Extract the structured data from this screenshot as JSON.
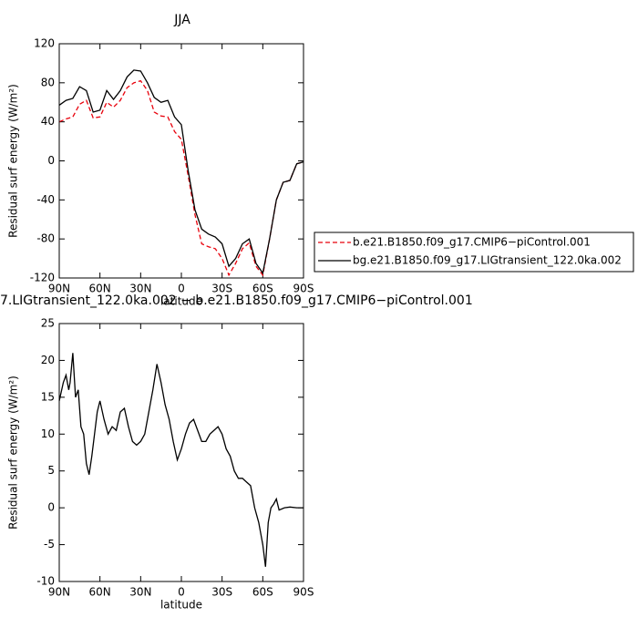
{
  "chart_data": [
    {
      "type": "line",
      "title": "JJA",
      "xlabel": "latitude",
      "ylabel": "Residual surf energy (W/m²)",
      "x": [
        90,
        85,
        80,
        75,
        70,
        65,
        60,
        55,
        50,
        45,
        40,
        35,
        30,
        25,
        20,
        15,
        10,
        5,
        0,
        -5,
        -10,
        -15,
        -20,
        -25,
        -30,
        -35,
        -40,
        -45,
        -50,
        -55,
        -60,
        -65,
        -70,
        -75,
        -80,
        -85,
        -90
      ],
      "series": [
        {
          "name": "b.e21.B1850.f09_g17.CMIP6−piControl.001",
          "color": "#e8000b",
          "dashed": true,
          "values": [
            40,
            43,
            45,
            58,
            62,
            44,
            45,
            60,
            55,
            62,
            75,
            80,
            82,
            72,
            50,
            46,
            45,
            30,
            22,
            -15,
            -55,
            -85,
            -88,
            -90,
            -100,
            -117,
            -105,
            -90,
            -84,
            -108,
            -117,
            -80,
            -40,
            -22,
            -20,
            -3,
            -1
          ]
        },
        {
          "name": "bg.e21.B1850.f09_g17.LIGtransient_122.0ka.002",
          "color": "#000000",
          "dashed": false,
          "values": [
            57,
            62,
            64,
            76,
            72,
            50,
            52,
            72,
            63,
            72,
            86,
            93,
            92,
            80,
            65,
            60,
            62,
            45,
            37,
            -10,
            -50,
            -70,
            -75,
            -78,
            -85,
            -108,
            -100,
            -85,
            -80,
            -105,
            -115,
            -80,
            -40,
            -22,
            -20,
            -3,
            -1
          ]
        }
      ],
      "xlim": [
        90,
        -90
      ],
      "xticks": [
        {
          "value": 90,
          "label": "90N"
        },
        {
          "value": 60,
          "label": "60N"
        },
        {
          "value": 30,
          "label": "30N"
        },
        0,
        {
          "value": -30,
          "label": "30S"
        },
        {
          "value": -60,
          "label": "60S"
        },
        {
          "value": -90,
          "label": "90S"
        }
      ],
      "ylim": [
        -120,
        120
      ],
      "yticks": [
        120,
        80,
        40,
        0,
        -40,
        -80,
        -120
      ],
      "legend": "right"
    },
    {
      "type": "line",
      "title": "7.LIGtransient_122.0ka.002 − b.e21.B1850.f09_g17.CMIP6−piControl.001",
      "xlabel": "latitude",
      "ylabel": "Residual surf energy (W/m²)",
      "x": [
        90,
        87,
        85,
        83,
        82,
        80,
        78,
        76,
        74,
        72,
        70,
        68,
        66,
        64,
        62,
        60,
        57,
        54,
        51,
        48,
        45,
        42,
        39,
        36,
        33,
        30,
        27,
        24,
        21,
        18,
        15,
        12,
        9,
        6,
        3,
        0,
        -3,
        -6,
        -9,
        -12,
        -15,
        -18,
        -21,
        -24,
        -27,
        -30,
        -33,
        -36,
        -39,
        -42,
        -45,
        -48,
        -51,
        -54,
        -57,
        -60,
        -62,
        -64,
        -66,
        -68,
        -70,
        -72,
        -76,
        -80,
        -85,
        -90
      ],
      "series": [
        {
          "color": "#000000",
          "dashed": false,
          "values": [
            14.5,
            17,
            18,
            16,
            17,
            21,
            15,
            16,
            11,
            10,
            6,
            4.5,
            7,
            10,
            13,
            14.5,
            12,
            10,
            11,
            10.5,
            13,
            13.5,
            11,
            9,
            8.5,
            9,
            10,
            13,
            16,
            19.5,
            17,
            14,
            12,
            9,
            6.5,
            8,
            10,
            11.5,
            12,
            10.5,
            9,
            9,
            10,
            10.5,
            11,
            10,
            8,
            7,
            5,
            4,
            4,
            3.5,
            3,
            0,
            -2,
            -5,
            -8,
            -2,
            0,
            0.5,
            1.2,
            -0.3,
            0,
            0.1,
            0,
            0
          ]
        }
      ],
      "xlim": [
        90,
        -90
      ],
      "xticks": [
        {
          "value": 90,
          "label": "90N"
        },
        {
          "value": 60,
          "label": "60N"
        },
        {
          "value": 30,
          "label": "30N"
        },
        0,
        {
          "value": -30,
          "label": "30S"
        },
        {
          "value": -60,
          "label": "60S"
        },
        {
          "value": -90,
          "label": "90S"
        }
      ],
      "ylim": [
        -10,
        25
      ],
      "yticks": [
        25,
        20,
        15,
        10,
        5,
        0,
        -5,
        -10
      ]
    }
  ]
}
